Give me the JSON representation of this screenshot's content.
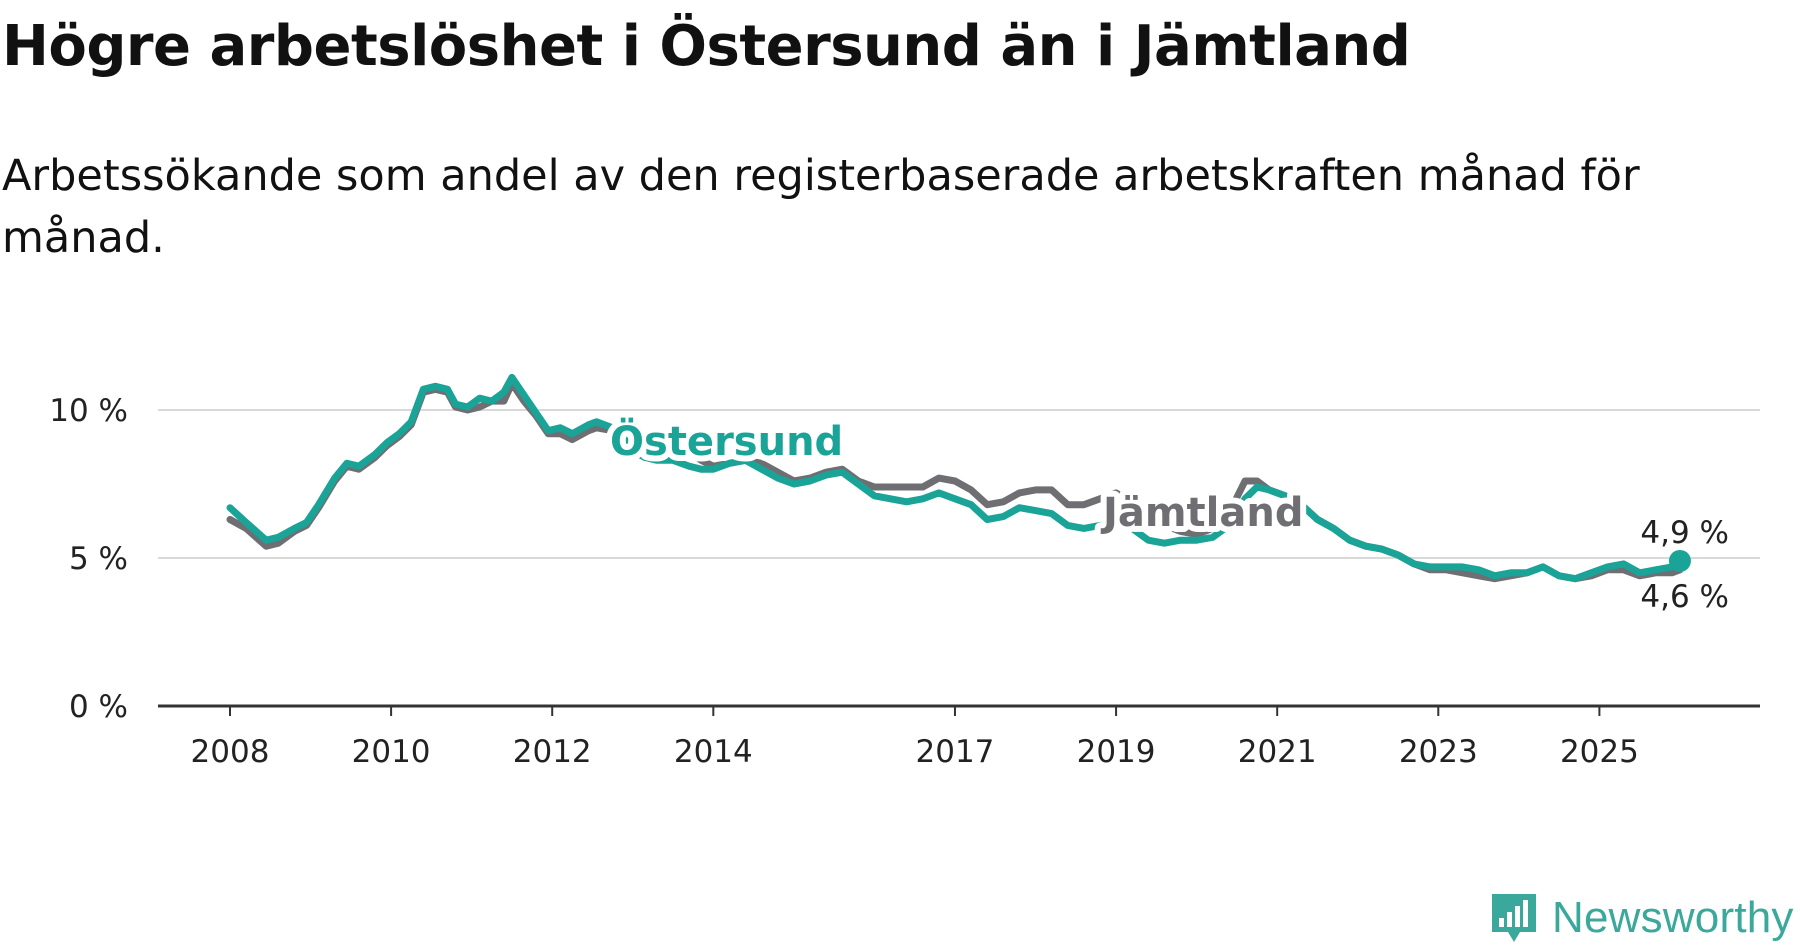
{
  "title": "Högre arbetslöshet i Östersund än i Jämtland",
  "subtitle": "Arbetssökande som andel av den registerbaserade arbetskraften månad för månad.",
  "brand": {
    "name": "Newsworthy",
    "icon": "newsworthy-logo-icon"
  },
  "colors": {
    "ostersund": "#1aa397",
    "jamtland": "#6f6e73",
    "grid": "#d9d9d9",
    "axis": "#333333"
  },
  "chart_data": {
    "type": "line",
    "title": "Högre arbetslöshet i Östersund än i Jämtland",
    "xlabel": "",
    "ylabel": "",
    "xlim": [
      2008,
      2026.1
    ],
    "ylim": [
      0,
      10
    ],
    "y_ticks": [
      {
        "value": 0,
        "label": "0 %"
      },
      {
        "value": 5,
        "label": "5 %"
      },
      {
        "value": 10,
        "label": "10 %"
      }
    ],
    "x_ticks": [
      {
        "value": 2008,
        "label": "2008"
      },
      {
        "value": 2010,
        "label": "2010"
      },
      {
        "value": 2012,
        "label": "2012"
      },
      {
        "value": 2014,
        "label": "2014"
      },
      {
        "value": 2017,
        "label": "2017"
      },
      {
        "value": 2019,
        "label": "2019"
      },
      {
        "value": 2021,
        "label": "2021"
      },
      {
        "value": 2023,
        "label": "2023"
      },
      {
        "value": 2025,
        "label": "2025"
      }
    ],
    "grid": true,
    "series": [
      {
        "name": "Jämtland",
        "label": "Jämtland",
        "end_label": "4,6 %",
        "points": [
          [
            2008.0,
            6.3
          ],
          [
            2008.2,
            6.0
          ],
          [
            2008.45,
            5.4
          ],
          [
            2008.6,
            5.5
          ],
          [
            2008.8,
            5.9
          ],
          [
            2008.95,
            6.1
          ],
          [
            2009.1,
            6.7
          ],
          [
            2009.3,
            7.6
          ],
          [
            2009.45,
            8.1
          ],
          [
            2009.6,
            8.0
          ],
          [
            2009.8,
            8.4
          ],
          [
            2009.95,
            8.8
          ],
          [
            2010.1,
            9.1
          ],
          [
            2010.25,
            9.5
          ],
          [
            2010.4,
            10.6
          ],
          [
            2010.55,
            10.7
          ],
          [
            2010.7,
            10.6
          ],
          [
            2010.8,
            10.1
          ],
          [
            2010.95,
            10.0
          ],
          [
            2011.1,
            10.1
          ],
          [
            2011.25,
            10.3
          ],
          [
            2011.4,
            10.3
          ],
          [
            2011.5,
            10.9
          ],
          [
            2011.65,
            10.3
          ],
          [
            2011.8,
            9.8
          ],
          [
            2011.95,
            9.2
          ],
          [
            2012.1,
            9.2
          ],
          [
            2012.25,
            9.0
          ],
          [
            2012.45,
            9.3
          ],
          [
            2012.55,
            9.4
          ],
          [
            2012.75,
            9.3
          ],
          [
            2012.9,
            9.0
          ],
          [
            2013.0,
            8.7
          ],
          [
            2013.15,
            8.4
          ],
          [
            2013.3,
            8.5
          ],
          [
            2013.5,
            8.6
          ],
          [
            2013.7,
            8.6
          ],
          [
            2013.85,
            8.3
          ],
          [
            2014.0,
            8.1
          ],
          [
            2014.2,
            8.2
          ],
          [
            2014.4,
            8.3
          ],
          [
            2014.6,
            8.2
          ],
          [
            2014.8,
            7.9
          ],
          [
            2015.0,
            7.6
          ],
          [
            2015.2,
            7.7
          ],
          [
            2015.4,
            7.9
          ],
          [
            2015.6,
            8.0
          ],
          [
            2015.8,
            7.6
          ],
          [
            2016.0,
            7.4
          ],
          [
            2016.2,
            7.4
          ],
          [
            2016.4,
            7.4
          ],
          [
            2016.6,
            7.4
          ],
          [
            2016.8,
            7.7
          ],
          [
            2017.0,
            7.6
          ],
          [
            2017.2,
            7.3
          ],
          [
            2017.4,
            6.8
          ],
          [
            2017.6,
            6.9
          ],
          [
            2017.8,
            7.2
          ],
          [
            2018.0,
            7.3
          ],
          [
            2018.2,
            7.3
          ],
          [
            2018.4,
            6.8
          ],
          [
            2018.6,
            6.8
          ],
          [
            2018.8,
            7.0
          ],
          [
            2019.0,
            7.2
          ],
          [
            2019.2,
            6.9
          ],
          [
            2019.4,
            6.3
          ],
          [
            2019.6,
            6.1
          ],
          [
            2019.8,
            5.9
          ],
          [
            2020.0,
            5.8
          ],
          [
            2020.2,
            6.0
          ],
          [
            2020.4,
            6.5
          ],
          [
            2020.6,
            7.6
          ],
          [
            2020.75,
            7.6
          ],
          [
            2020.9,
            7.3
          ],
          [
            2021.1,
            7.1
          ],
          [
            2021.3,
            6.8
          ],
          [
            2021.5,
            6.3
          ],
          [
            2021.7,
            6.0
          ],
          [
            2021.9,
            5.6
          ],
          [
            2022.1,
            5.4
          ],
          [
            2022.3,
            5.3
          ],
          [
            2022.5,
            5.1
          ],
          [
            2022.7,
            4.8
          ],
          [
            2022.9,
            4.6
          ],
          [
            2023.1,
            4.6
          ],
          [
            2023.3,
            4.5
          ],
          [
            2023.5,
            4.4
          ],
          [
            2023.7,
            4.3
          ],
          [
            2023.9,
            4.4
          ],
          [
            2024.1,
            4.5
          ],
          [
            2024.3,
            4.7
          ],
          [
            2024.5,
            4.4
          ],
          [
            2024.7,
            4.3
          ],
          [
            2024.9,
            4.4
          ],
          [
            2025.1,
            4.6
          ],
          [
            2025.3,
            4.6
          ],
          [
            2025.5,
            4.4
          ],
          [
            2025.7,
            4.5
          ],
          [
            2025.9,
            4.5
          ],
          [
            2026.0,
            4.6
          ]
        ]
      },
      {
        "name": "Östersund",
        "label": "Östersund",
        "end_label": "4,9 %",
        "points": [
          [
            2008.0,
            6.7
          ],
          [
            2008.2,
            6.2
          ],
          [
            2008.45,
            5.6
          ],
          [
            2008.6,
            5.7
          ],
          [
            2008.8,
            6.0
          ],
          [
            2008.95,
            6.2
          ],
          [
            2009.1,
            6.8
          ],
          [
            2009.3,
            7.7
          ],
          [
            2009.45,
            8.2
          ],
          [
            2009.6,
            8.1
          ],
          [
            2009.8,
            8.5
          ],
          [
            2009.95,
            8.9
          ],
          [
            2010.1,
            9.2
          ],
          [
            2010.25,
            9.6
          ],
          [
            2010.4,
            10.7
          ],
          [
            2010.55,
            10.8
          ],
          [
            2010.7,
            10.7
          ],
          [
            2010.8,
            10.2
          ],
          [
            2010.95,
            10.1
          ],
          [
            2011.1,
            10.4
          ],
          [
            2011.25,
            10.3
          ],
          [
            2011.4,
            10.6
          ],
          [
            2011.5,
            11.1
          ],
          [
            2011.65,
            10.5
          ],
          [
            2011.8,
            9.9
          ],
          [
            2011.95,
            9.3
          ],
          [
            2012.1,
            9.4
          ],
          [
            2012.25,
            9.2
          ],
          [
            2012.45,
            9.5
          ],
          [
            2012.55,
            9.6
          ],
          [
            2012.75,
            9.4
          ],
          [
            2012.9,
            9.0
          ],
          [
            2013.0,
            8.6
          ],
          [
            2013.15,
            8.4
          ],
          [
            2013.3,
            8.3
          ],
          [
            2013.5,
            8.3
          ],
          [
            2013.7,
            8.1
          ],
          [
            2013.85,
            8.0
          ],
          [
            2014.0,
            8.0
          ],
          [
            2014.2,
            8.2
          ],
          [
            2014.4,
            8.3
          ],
          [
            2014.6,
            8.0
          ],
          [
            2014.8,
            7.7
          ],
          [
            2015.0,
            7.5
          ],
          [
            2015.2,
            7.6
          ],
          [
            2015.4,
            7.8
          ],
          [
            2015.6,
            7.9
          ],
          [
            2015.8,
            7.5
          ],
          [
            2016.0,
            7.1
          ],
          [
            2016.2,
            7.0
          ],
          [
            2016.4,
            6.9
          ],
          [
            2016.6,
            7.0
          ],
          [
            2016.8,
            7.2
          ],
          [
            2017.0,
            7.0
          ],
          [
            2017.2,
            6.8
          ],
          [
            2017.4,
            6.3
          ],
          [
            2017.6,
            6.4
          ],
          [
            2017.8,
            6.7
          ],
          [
            2018.0,
            6.6
          ],
          [
            2018.2,
            6.5
          ],
          [
            2018.4,
            6.1
          ],
          [
            2018.6,
            6.0
          ],
          [
            2018.8,
            6.1
          ],
          [
            2019.0,
            6.2
          ],
          [
            2019.2,
            6.0
          ],
          [
            2019.4,
            5.6
          ],
          [
            2019.6,
            5.5
          ],
          [
            2019.8,
            5.6
          ],
          [
            2020.0,
            5.6
          ],
          [
            2020.2,
            5.7
          ],
          [
            2020.4,
            6.1
          ],
          [
            2020.6,
            7.0
          ],
          [
            2020.75,
            7.4
          ],
          [
            2020.9,
            7.3
          ],
          [
            2021.1,
            7.1
          ],
          [
            2021.3,
            6.8
          ],
          [
            2021.5,
            6.3
          ],
          [
            2021.7,
            6.0
          ],
          [
            2021.9,
            5.6
          ],
          [
            2022.1,
            5.4
          ],
          [
            2022.3,
            5.3
          ],
          [
            2022.5,
            5.1
          ],
          [
            2022.7,
            4.8
          ],
          [
            2022.9,
            4.7
          ],
          [
            2023.1,
            4.7
          ],
          [
            2023.3,
            4.7
          ],
          [
            2023.5,
            4.6
          ],
          [
            2023.7,
            4.4
          ],
          [
            2023.9,
            4.5
          ],
          [
            2024.1,
            4.5
          ],
          [
            2024.3,
            4.7
          ],
          [
            2024.5,
            4.4
          ],
          [
            2024.7,
            4.3
          ],
          [
            2024.9,
            4.5
          ],
          [
            2025.1,
            4.7
          ],
          [
            2025.3,
            4.8
          ],
          [
            2025.5,
            4.5
          ],
          [
            2025.7,
            4.6
          ],
          [
            2025.9,
            4.7
          ],
          [
            2026.0,
            4.9
          ]
        ]
      }
    ]
  }
}
